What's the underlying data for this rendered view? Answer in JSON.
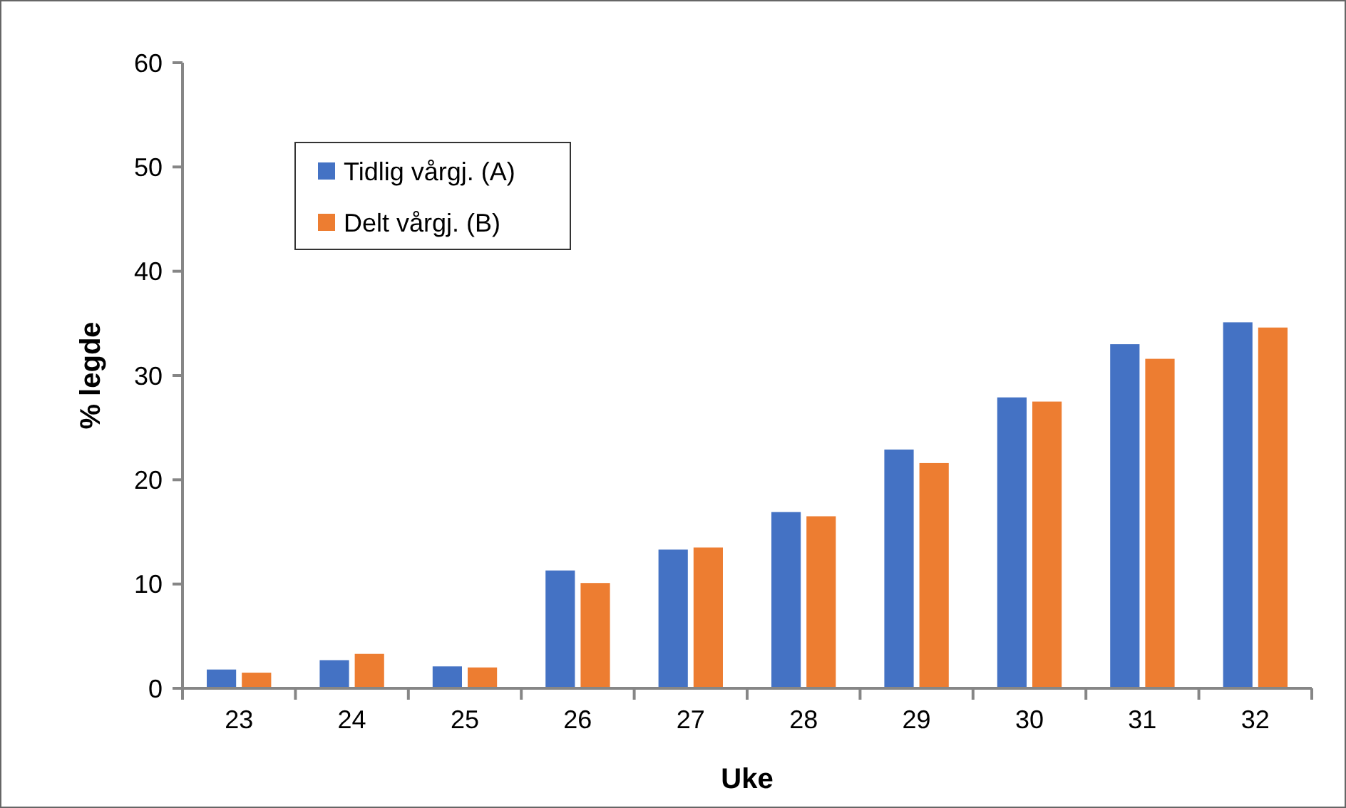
{
  "chart_data": {
    "type": "bar",
    "xlabel": "Uke",
    "ylabel": "% legde",
    "categories": [
      "23",
      "24",
      "25",
      "26",
      "27",
      "28",
      "29",
      "30",
      "31",
      "32"
    ],
    "series": [
      {
        "name": "Tidlig vårgj. (A)",
        "color": "#4472c4",
        "values": [
          1.8,
          2.7,
          2.1,
          11.3,
          13.3,
          16.9,
          22.9,
          27.9,
          33.0,
          35.1
        ]
      },
      {
        "name": "Delt vårgj. (B)",
        "color": "#ed7d31",
        "values": [
          1.5,
          3.3,
          2.0,
          10.1,
          13.5,
          16.5,
          21.6,
          27.5,
          31.6,
          34.6
        ]
      }
    ],
    "ylim": [
      0,
      60
    ],
    "yticks": [
      0,
      10,
      20,
      30,
      40,
      50,
      60
    ],
    "grid": false,
    "legend": "top left"
  }
}
